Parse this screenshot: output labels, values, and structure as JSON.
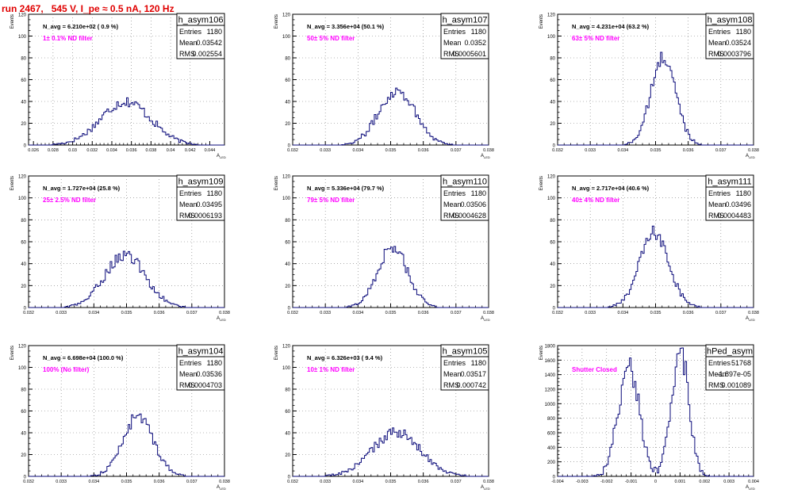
{
  "header": {
    "run_title": "run 2467,   545 V, I_pe ≈ 0.5 nA, 120 Hz"
  },
  "common": {
    "ylabel": "Events",
    "xlabel_main": "A",
    "xlabel_sub": "LED",
    "stat_labels": [
      "Entries",
      "Mean",
      "RMS"
    ]
  },
  "colors": {
    "histogram": "#0a0a7a",
    "annotation": "#ff00ff",
    "title_red": "#e00000",
    "grid": "#777777"
  },
  "chart_data": [
    {
      "type": "histogram",
      "name": "h_asym106",
      "navg": "N_avg = 6.210e+02 ( 0.9 %)",
      "filter": "1± 0.1% ND filter",
      "entries": "1180",
      "mean": "0.03542",
      "rms": "0.002554",
      "xlim": [
        0.0255,
        0.0455
      ],
      "ylim": [
        0,
        120
      ],
      "xticks": [
        "0.026",
        "0.028",
        "0.03",
        "0.032",
        "0.034",
        "0.036",
        "0.038",
        "0.04",
        "0.042",
        "0.044"
      ],
      "yticks": [
        "0",
        "20",
        "40",
        "60",
        "80",
        "100",
        "120"
      ],
      "peak": {
        "mean": 0.03542,
        "sigma": 0.00255,
        "height": 40
      }
    },
    {
      "type": "histogram",
      "name": "h_asym107",
      "navg": "N_avg = 3.356e+04 (50.1 %)",
      "filter": "50± 5% ND filter",
      "entries": "1180",
      "mean": "0.0352",
      "rms": "0.0005601",
      "xlim": [
        0.032,
        0.038
      ],
      "ylim": [
        0,
        120
      ],
      "xticks": [
        "0.032",
        "0.033",
        "0.034",
        "0.035",
        "0.036",
        "0.037",
        "0.038"
      ],
      "yticks": [
        "0",
        "20",
        "40",
        "60",
        "80",
        "100",
        "120"
      ],
      "peak": {
        "mean": 0.0352,
        "sigma": 0.00056,
        "height": 50
      }
    },
    {
      "type": "histogram",
      "name": "h_asym108",
      "navg": "N_avg = 4.231e+04 (63.2 %)",
      "filter": "63± 5% ND filter",
      "entries": "1180",
      "mean": "0.03524",
      "rms": "0.0003796",
      "xlim": [
        0.032,
        0.038
      ],
      "ylim": [
        0,
        120
      ],
      "xticks": [
        "0.032",
        "0.033",
        "0.034",
        "0.035",
        "0.036",
        "0.037",
        "0.038"
      ],
      "yticks": [
        "0",
        "20",
        "40",
        "60",
        "80",
        "100",
        "120"
      ],
      "peak": {
        "mean": 0.03524,
        "sigma": 0.00038,
        "height": 80
      }
    },
    {
      "type": "histogram",
      "name": "h_asym109",
      "navg": "N_avg = 1.727e+04 (25.8 %)",
      "filter": "25± 2.5% ND filter",
      "entries": "1180",
      "mean": "0.03495",
      "rms": "0.0006193",
      "xlim": [
        0.032,
        0.038
      ],
      "ylim": [
        0,
        120
      ],
      "xticks": [
        "0.032",
        "0.033",
        "0.034",
        "0.035",
        "0.036",
        "0.037",
        "0.038"
      ],
      "yticks": [
        "0",
        "20",
        "40",
        "60",
        "80",
        "100",
        "120"
      ],
      "peak": {
        "mean": 0.03495,
        "sigma": 0.00062,
        "height": 48
      }
    },
    {
      "type": "histogram",
      "name": "h_asym110",
      "navg": "N_avg = 5.336e+04 (79.7 %)",
      "filter": "79± 5% ND filter",
      "entries": "1180",
      "mean": "0.03506",
      "rms": "0.0004628",
      "xlim": [
        0.032,
        0.038
      ],
      "ylim": [
        0,
        120
      ],
      "xticks": [
        "0.032",
        "0.033",
        "0.034",
        "0.035",
        "0.036",
        "0.037",
        "0.038"
      ],
      "yticks": [
        "0",
        "20",
        "40",
        "60",
        "80",
        "100",
        "120"
      ],
      "peak": {
        "mean": 0.03506,
        "sigma": 0.00046,
        "height": 55
      }
    },
    {
      "type": "histogram",
      "name": "h_asym111",
      "navg": "N_avg = 2.717e+04 (40.6 %)",
      "filter": "40± 4% ND filter",
      "entries": "1180",
      "mean": "0.03496",
      "rms": "0.0004483",
      "xlim": [
        0.032,
        0.038
      ],
      "ylim": [
        0,
        120
      ],
      "xticks": [
        "0.032",
        "0.033",
        "0.034",
        "0.035",
        "0.036",
        "0.037",
        "0.038"
      ],
      "yticks": [
        "0",
        "20",
        "40",
        "60",
        "80",
        "100",
        "120"
      ],
      "peak": {
        "mean": 0.03496,
        "sigma": 0.00045,
        "height": 68
      }
    },
    {
      "type": "histogram",
      "name": "h_asym104",
      "navg": "N_avg = 6.698e+04 (100.0 %)",
      "filter": "100% (No filter)",
      "entries": "1180",
      "mean": "0.03536",
      "rms": "0.0004703",
      "xlim": [
        0.032,
        0.038
      ],
      "ylim": [
        0,
        120
      ],
      "xticks": [
        "0.032",
        "0.033",
        "0.034",
        "0.035",
        "0.036",
        "0.037",
        "0.038"
      ],
      "yticks": [
        "0",
        "20",
        "40",
        "60",
        "80",
        "100",
        "120"
      ],
      "peak": {
        "mean": 0.03536,
        "sigma": 0.00047,
        "height": 55
      }
    },
    {
      "type": "histogram",
      "name": "h_asym105",
      "navg": "N_avg = 6.326e+03 ( 9.4 %)",
      "filter": "10± 1% ND filter",
      "entries": "1180",
      "mean": "0.03517",
      "rms": "0.000742",
      "xlim": [
        0.032,
        0.038
      ],
      "ylim": [
        0,
        120
      ],
      "xticks": [
        "0.032",
        "0.033",
        "0.034",
        "0.035",
        "0.036",
        "0.037",
        "0.038"
      ],
      "yticks": [
        "0",
        "20",
        "40",
        "60",
        "80",
        "100",
        "120"
      ],
      "peak": {
        "mean": 0.03517,
        "sigma": 0.00074,
        "height": 40
      }
    },
    {
      "type": "histogram",
      "name": "hPed_asym",
      "navg": "",
      "filter": "Shutter Closed",
      "entries": "51768",
      "mean": "-1.897e-05",
      "rms": "0.001089",
      "xlim": [
        -0.004,
        0.004
      ],
      "ylim": [
        0,
        1800
      ],
      "xticks": [
        "-0.004",
        "-0.003",
        "-0.002",
        "-0.001",
        "0",
        "0.001",
        "0.002",
        "0.003",
        "0.004"
      ],
      "yticks": [
        "0",
        "200",
        "400",
        "600",
        "800",
        "1000",
        "1200",
        "1400",
        "1600",
        "1800"
      ],
      "peaks": [
        {
          "mean": -0.0011,
          "sigma": 0.00042,
          "height": 1560
        },
        {
          "mean": 0.001,
          "sigma": 0.00035,
          "height": 1760
        }
      ]
    }
  ]
}
